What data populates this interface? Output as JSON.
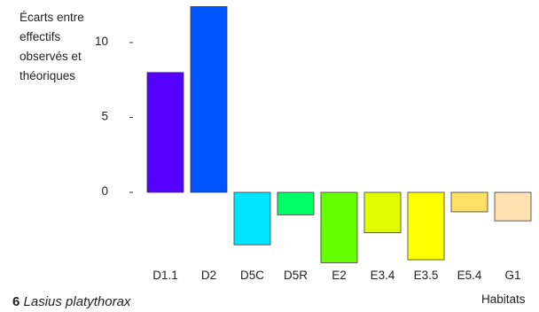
{
  "figure": {
    "caption_number": "6",
    "caption_species": "Lasius platythorax"
  },
  "chart_data": {
    "type": "bar",
    "ylabel_lines": [
      "Écarts entre",
      "effectifs",
      "observés et",
      "théoriques"
    ],
    "xlabel": "Habitats",
    "categories": [
      "D1.1",
      "D2",
      "D5C",
      "D5R",
      "E2",
      "E3.4",
      "E3.5",
      "E5.4",
      "G1"
    ],
    "values": [
      8.0,
      12.4,
      -3.5,
      -1.5,
      -4.7,
      -2.7,
      -4.5,
      -1.3,
      -1.9
    ],
    "colors": [
      "#5500ff",
      "#0055ff",
      "#00e5ff",
      "#00ff66",
      "#66ff00",
      "#dfff00",
      "#ffff00",
      "#ffe066",
      "#ffe0b0"
    ],
    "yticks": [
      0,
      5,
      10
    ],
    "ylim": [
      -5,
      12.5
    ],
    "grid": false
  }
}
